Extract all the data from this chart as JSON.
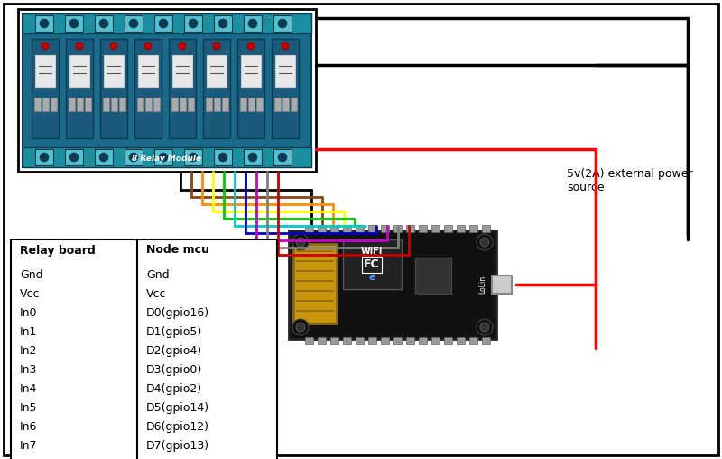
{
  "bg_color": "#ffffff",
  "border_color": "#000000",
  "table": {
    "col1_header": "Relay board",
    "col2_header": "Node mcu",
    "rows": [
      [
        "Gnd",
        "Gnd"
      ],
      [
        "Vcc",
        "Vcc"
      ],
      [
        "In0",
        "D0(gpio16)"
      ],
      [
        "In1",
        "D1(gpio5)"
      ],
      [
        "In2",
        "D2(gpio4)"
      ],
      [
        "In3",
        "D3(gpio0)"
      ],
      [
        "In4",
        "D4(gpio2)"
      ],
      [
        "In5",
        "D5(gpio14)"
      ],
      [
        "In6",
        "D6(gpio12)"
      ],
      [
        "In7",
        "D7(gpio13)"
      ]
    ]
  },
  "power_label": "5v(2A) external power\nsource",
  "wire_colors": [
    "#000000",
    "#8B4513",
    "#ff8c00",
    "#ffff00",
    "#00cc00",
    "#00cccc",
    "#0000cc",
    "#cc00cc",
    "#808080",
    "#cc0000"
  ]
}
